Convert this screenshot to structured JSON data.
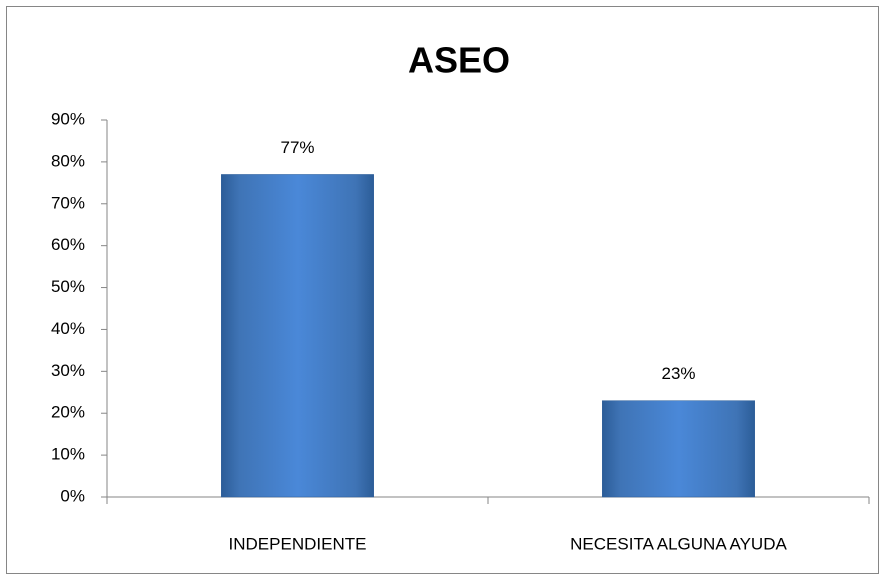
{
  "chart_data": {
    "type": "bar",
    "title": "ASEO",
    "categories": [
      "INDEPENDIENTE",
      "NECESITA ALGUNA AYUDA"
    ],
    "values": [
      77,
      23
    ],
    "value_labels": [
      "77%",
      "23%"
    ],
    "color": "#4a7ebb",
    "ylim": [
      0,
      90
    ],
    "yticks": [
      {
        "value": 0,
        "label": "0%"
      },
      {
        "value": 10,
        "label": "10%"
      },
      {
        "value": 20,
        "label": "20%"
      },
      {
        "value": 30,
        "label": "30%"
      },
      {
        "value": 40,
        "label": "40%"
      },
      {
        "value": 50,
        "label": "50%"
      },
      {
        "value": 60,
        "label": "60%"
      },
      {
        "value": 70,
        "label": "70%"
      },
      {
        "value": 80,
        "label": "80%"
      },
      {
        "value": 90,
        "label": "90%"
      }
    ],
    "grid": false
  }
}
